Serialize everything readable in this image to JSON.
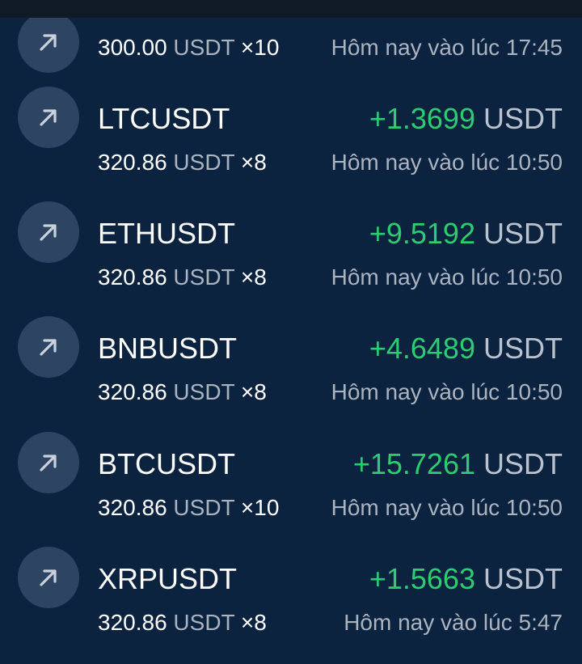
{
  "colors": {
    "background": "#0c2340",
    "profit": "#2ecc71",
    "icon_bg": "#2d4562",
    "muted": "#aab3c0"
  },
  "partial_row": {
    "icon": "arrow-up-right-icon",
    "amount": "300.00",
    "unit": "USDT",
    "leverage": "×10",
    "time": "Hôm nay vào lúc 17:45"
  },
  "trades": [
    {
      "symbol": "LTCUSDT",
      "pnl": "+1.3699",
      "pnl_unit": "USDT",
      "amount": "320.86",
      "unit": "USDT",
      "leverage": "×8",
      "time": "Hôm nay vào lúc 10:50",
      "icon": "arrow-up-right-icon"
    },
    {
      "symbol": "ETHUSDT",
      "pnl": "+9.5192",
      "pnl_unit": "USDT",
      "amount": "320.86",
      "unit": "USDT",
      "leverage": "×8",
      "time": "Hôm nay vào lúc 10:50",
      "icon": "arrow-up-right-icon"
    },
    {
      "symbol": "BNBUSDT",
      "pnl": "+4.6489",
      "pnl_unit": "USDT",
      "amount": "320.86",
      "unit": "USDT",
      "leverage": "×8",
      "time": "Hôm nay vào lúc 10:50",
      "icon": "arrow-up-right-icon"
    },
    {
      "symbol": "BTCUSDT",
      "pnl": "+15.7261",
      "pnl_unit": "USDT",
      "amount": "320.86",
      "unit": "USDT",
      "leverage": "×10",
      "time": "Hôm nay vào lúc 10:50",
      "icon": "arrow-up-right-icon"
    },
    {
      "symbol": "XRPUSDT",
      "pnl": "+1.5663",
      "pnl_unit": "USDT",
      "amount": "320.86",
      "unit": "USDT",
      "leverage": "×8",
      "time": "Hôm nay vào lúc 5:47",
      "icon": "arrow-up-right-icon"
    }
  ]
}
